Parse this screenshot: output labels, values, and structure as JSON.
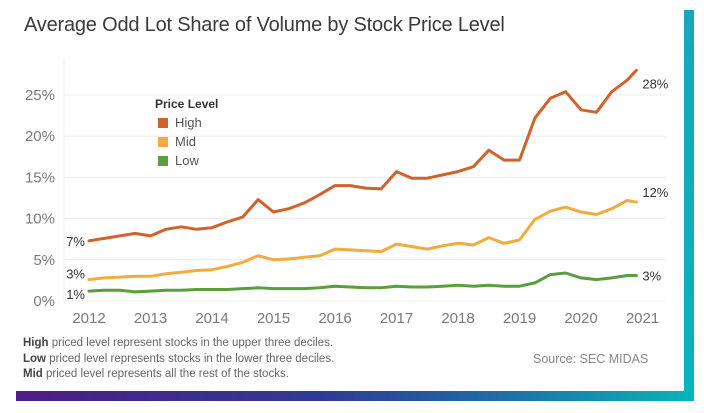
{
  "chart_data": {
    "type": "line",
    "title": "Average Odd Lot Share of Volume by Stock Price Level",
    "xlabel": "",
    "ylabel": "",
    "ylim": [
      0,
      28
    ],
    "yticks": [
      0,
      5,
      10,
      15,
      20,
      25
    ],
    "ytick_labels": [
      "0%",
      "5%",
      "10%",
      "15%",
      "20%",
      "25%"
    ],
    "xlim": [
      2012,
      2021
    ],
    "xticks": [
      2012,
      2013,
      2014,
      2015,
      2016,
      2017,
      2018,
      2019,
      2020,
      2021
    ],
    "xtick_labels": [
      "2012",
      "2013",
      "2014",
      "2015",
      "2016",
      "2017",
      "2018",
      "2019",
      "2020",
      "2021"
    ],
    "grid": "horizontal",
    "legend": {
      "title": "Price Level",
      "placement": "top-left",
      "entries": [
        "High",
        "Mid",
        "Low"
      ]
    },
    "x": [
      2012.0,
      2012.25,
      2012.5,
      2012.75,
      2013.0,
      2013.25,
      2013.5,
      2013.75,
      2014.0,
      2014.25,
      2014.5,
      2014.75,
      2015.0,
      2015.25,
      2015.5,
      2015.75,
      2016.0,
      2016.25,
      2016.5,
      2016.75,
      2017.0,
      2017.25,
      2017.5,
      2017.75,
      2018.0,
      2018.25,
      2018.5,
      2018.75,
      2019.0,
      2019.25,
      2019.5,
      2019.75,
      2020.0,
      2020.25,
      2020.5,
      2020.75,
      2020.9
    ],
    "series": [
      {
        "name": "High",
        "color": "#d0632d",
        "start_label": "7%",
        "end_label": "28%",
        "values": [
          7.3,
          7.6,
          7.9,
          8.2,
          7.9,
          8.7,
          9.0,
          8.7,
          8.9,
          9.6,
          10.2,
          12.3,
          10.8,
          11.2,
          11.9,
          12.9,
          14.0,
          14.0,
          13.7,
          13.6,
          15.7,
          14.9,
          14.9,
          15.3,
          15.7,
          16.3,
          18.3,
          17.1,
          17.1,
          22.2,
          24.6,
          25.4,
          23.2,
          22.9,
          25.4,
          26.8,
          28.0
        ]
      },
      {
        "name": "Mid",
        "color": "#f2ab3e",
        "start_label": "3%",
        "end_label": "12%",
        "values": [
          2.6,
          2.8,
          2.9,
          3.0,
          3.0,
          3.3,
          3.5,
          3.7,
          3.8,
          4.2,
          4.7,
          5.5,
          5.0,
          5.1,
          5.3,
          5.5,
          6.3,
          6.2,
          6.1,
          6.0,
          6.9,
          6.6,
          6.3,
          6.7,
          7.0,
          6.8,
          7.7,
          7.0,
          7.4,
          9.9,
          10.9,
          11.4,
          10.8,
          10.5,
          11.2,
          12.2,
          12.0
        ]
      },
      {
        "name": "Low",
        "color": "#5c9e3d",
        "start_label": "1%",
        "end_label": "3%",
        "values": [
          1.2,
          1.3,
          1.3,
          1.1,
          1.2,
          1.3,
          1.3,
          1.4,
          1.4,
          1.4,
          1.5,
          1.6,
          1.5,
          1.5,
          1.5,
          1.6,
          1.8,
          1.7,
          1.6,
          1.6,
          1.8,
          1.7,
          1.7,
          1.8,
          1.9,
          1.8,
          1.9,
          1.8,
          1.8,
          2.2,
          3.2,
          3.4,
          2.8,
          2.6,
          2.8,
          3.1,
          3.1
        ]
      }
    ]
  },
  "notes": [
    {
      "bold": "High",
      "text": " priced level represent stocks in the upper three deciles."
    },
    {
      "bold": "Low",
      "text": " priced level represents  stocks in the lower three deciles."
    },
    {
      "bold": "Mid",
      "text": " priced level represents all the rest of the stocks."
    }
  ],
  "source": "Source: SEC MIDAS"
}
